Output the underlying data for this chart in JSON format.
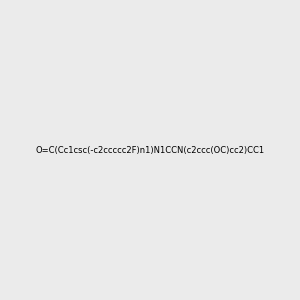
{
  "smiles": "O=C(Cc1csc(-c2ccccc2F)n1)N1CCN(c2ccc(OC)cc2)CC1",
  "background_color": "#ebebeb",
  "fig_width": 3.0,
  "fig_height": 3.0,
  "dpi": 100,
  "atom_colors": {
    "N": [
      0,
      0,
      1
    ],
    "O": [
      1,
      0,
      0
    ],
    "S": [
      0.8,
      0.8,
      0
    ],
    "F": [
      0.8,
      0,
      0.8
    ]
  },
  "title": ""
}
